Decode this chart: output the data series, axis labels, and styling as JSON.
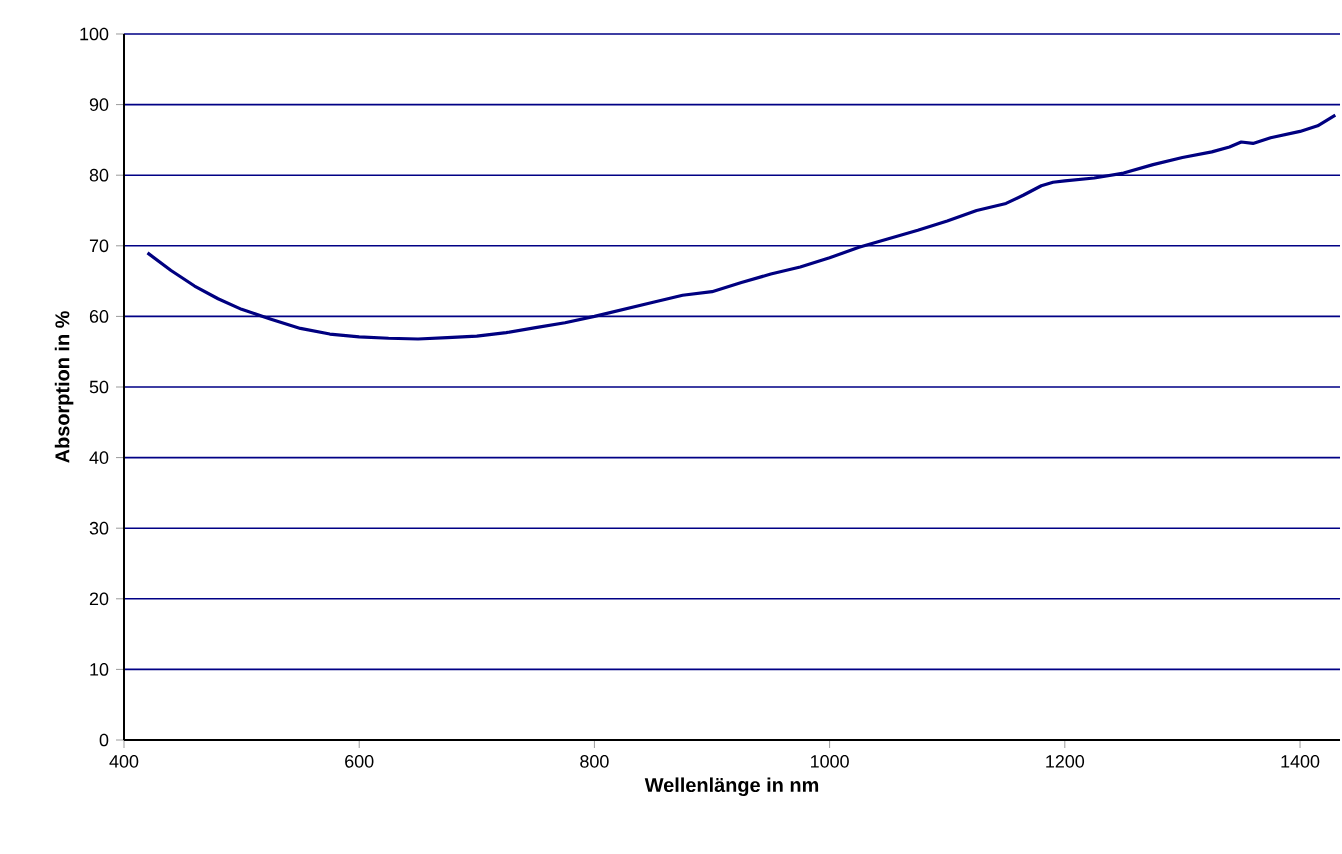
{
  "chart_data": {
    "type": "line",
    "xlabel": "Wellenlänge in nm",
    "ylabel": "Absorption in %",
    "x": [
      420,
      440,
      460,
      480,
      500,
      525,
      550,
      575,
      600,
      625,
      650,
      675,
      700,
      725,
      750,
      775,
      800,
      825,
      850,
      875,
      900,
      925,
      950,
      975,
      1000,
      1025,
      1050,
      1075,
      1100,
      1125,
      1150,
      1165,
      1180,
      1190,
      1200,
      1225,
      1250,
      1275,
      1300,
      1325,
      1340,
      1350,
      1360,
      1375,
      1400,
      1415,
      1430
    ],
    "series": [
      {
        "color": "#000080",
        "values": [
          69,
          66.5,
          64.3,
          62.5,
          61,
          59.6,
          58.3,
          57.5,
          57.1,
          56.9,
          56.8,
          57,
          57.2,
          57.7,
          58.4,
          59.1,
          60,
          61,
          62,
          63,
          63.5,
          64.8,
          66,
          67,
          68.3,
          69.8,
          71,
          72.2,
          73.5,
          75,
          76,
          77.2,
          78.5,
          79,
          79.2,
          79.6,
          80.3,
          81.5,
          82.5,
          83.3,
          84,
          84.7,
          84.5,
          85.3,
          86.2,
          87,
          88.5
        ]
      }
    ],
    "xlim": [
      400,
      1434
    ],
    "ylim": [
      0,
      100
    ],
    "xticks": [
      400,
      600,
      800,
      1000,
      1200,
      1400
    ],
    "yticks": [
      0,
      10,
      20,
      30,
      40,
      50,
      60,
      70,
      80,
      90,
      100
    ],
    "grid": "y",
    "marker": "none",
    "line_style": "solid"
  }
}
